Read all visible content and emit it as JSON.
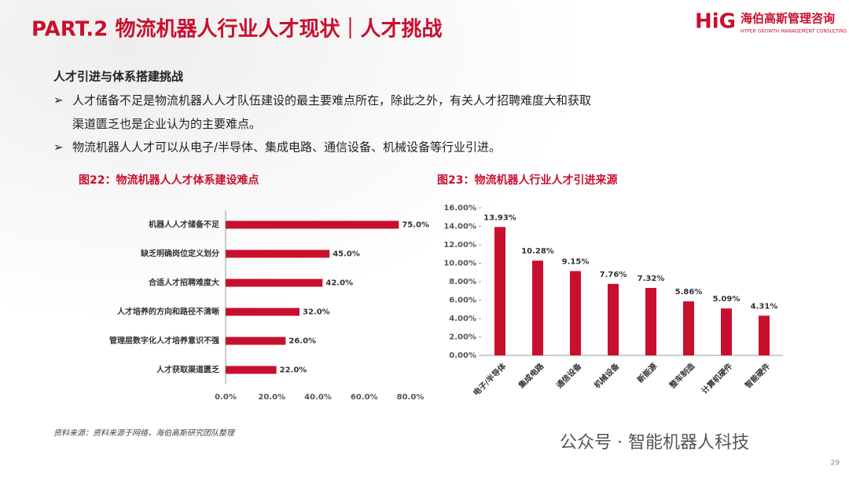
{
  "header": {
    "title": "PART.2 物流机器人行业人才现状｜人才挑战",
    "logo_mark": "HiG",
    "logo_name": "海伯高斯管理咨询",
    "logo_sub": "HYPER GROWTH MANAGEMENT CONSULTING"
  },
  "section": {
    "heading": "人才引进与体系搭建挑战",
    "bullets": [
      "人才储备不足是物流机器人人才队伍建设的最主要难点所在，除此之外，有关人才招聘难度大和获取渠道匮乏也是企业认为的主要难点。",
      "物流机器人人才可以从电子/半导体、集成电路、通信设备、机械设备等行业引进。"
    ]
  },
  "chart_data": [
    {
      "type": "hbar",
      "title": "图22：物流机器人人才体系建设难点",
      "color": "#c8102e",
      "categories": [
        "机器人人才储备不足",
        "缺乏明确岗位定义划分",
        "合适人才招聘难度大",
        "人才培养的方向和路径不清晰",
        "管理层数字化人才培养意识不强",
        "人才获取渠道匮乏"
      ],
      "values": [
        75,
        45,
        42,
        32,
        26,
        22
      ],
      "value_labels": [
        "75.0%",
        "45.0%",
        "42.0%",
        "32.0%",
        "26.0%",
        "22.0%"
      ],
      "xlim": [
        0,
        80
      ],
      "xticks": [
        {
          "value": 0,
          "label": "0.0%"
        },
        {
          "value": 20,
          "label": "20.0%"
        },
        {
          "value": 40,
          "label": "40.0%"
        },
        {
          "value": 60,
          "label": "60.0%"
        },
        {
          "value": 80,
          "label": "80.0%"
        }
      ]
    },
    {
      "type": "bar",
      "title": "图23：物流机器人行业人才引进来源",
      "color": "#c8102e",
      "categories": [
        "电子/半导体",
        "集成电路",
        "通信设备",
        "机械设备",
        "新能源",
        "整车制造",
        "计算机硬件",
        "智能硬件"
      ],
      "values": [
        13.93,
        10.28,
        9.15,
        7.76,
        7.32,
        5.86,
        5.09,
        4.31
      ],
      "value_labels": [
        "13.93%",
        "10.28%",
        "9.15%",
        "7.76%",
        "7.32%",
        "5.86%",
        "5.09%",
        "4.31%"
      ],
      "ylim": [
        0,
        16
      ],
      "yticks": [
        {
          "value": 0,
          "label": "0.00%"
        },
        {
          "value": 2,
          "label": "2.00%"
        },
        {
          "value": 4,
          "label": "4.00%"
        },
        {
          "value": 6,
          "label": "6.00%"
        },
        {
          "value": 8,
          "label": "8.00%"
        },
        {
          "value": 10,
          "label": "10.00%"
        },
        {
          "value": 12,
          "label": "12.00%"
        },
        {
          "value": 14,
          "label": "14.00%"
        },
        {
          "value": 16,
          "label": "16.00%"
        }
      ]
    }
  ],
  "footer": {
    "source": "资料来源：资料来源于网络，海伯高斯研究团队整理",
    "watermark": "公众号 · 智能机器人科技",
    "page": "29"
  }
}
